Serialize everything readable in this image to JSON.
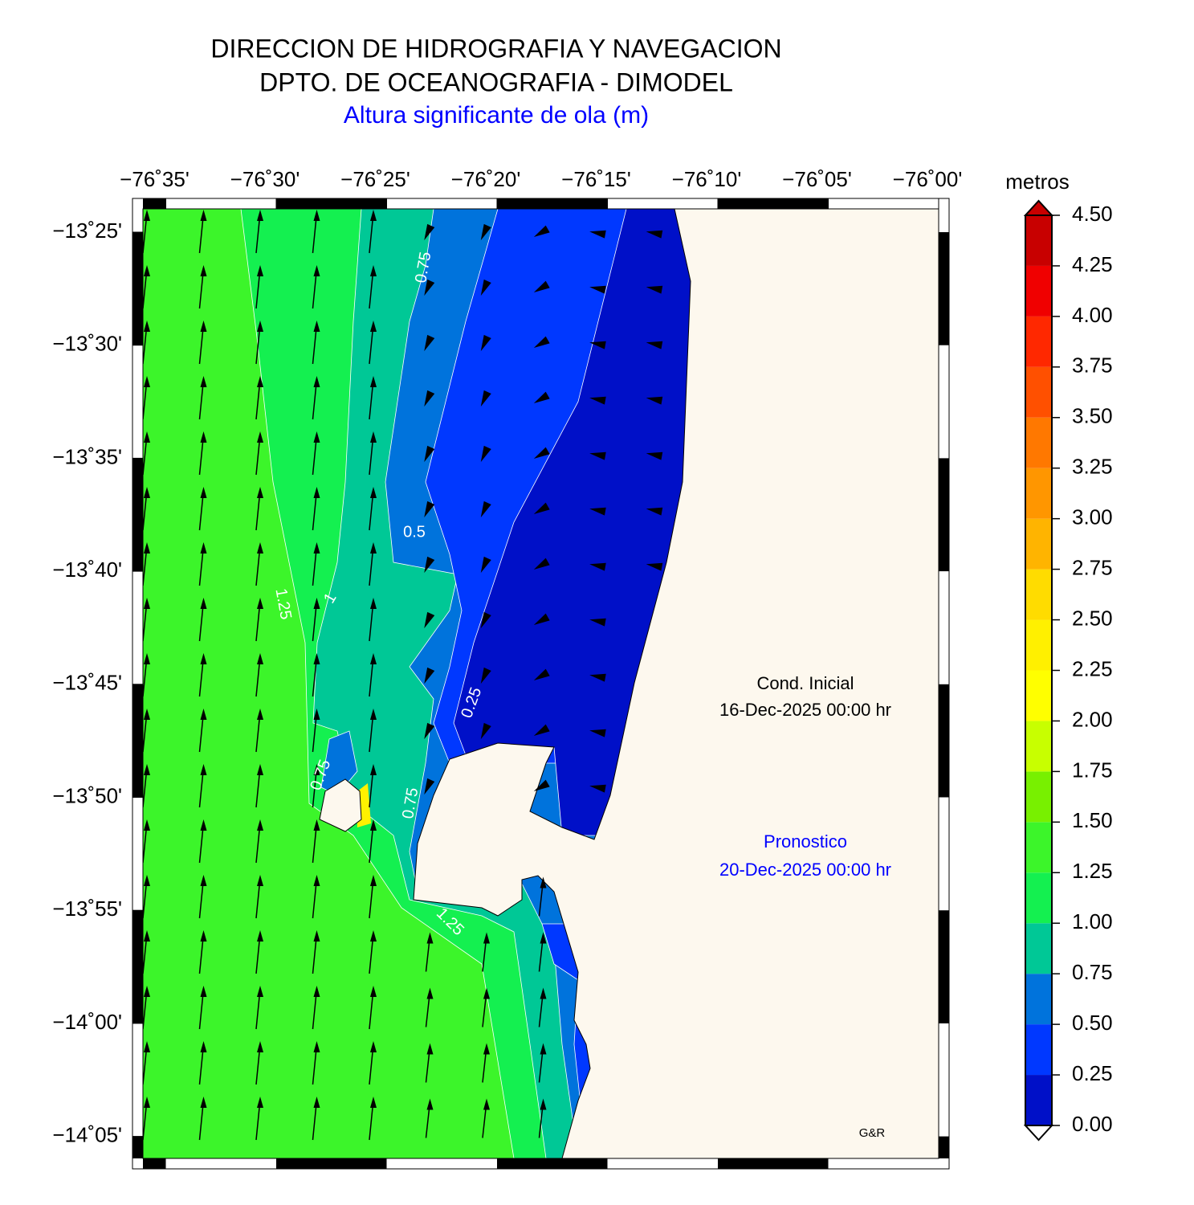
{
  "header": {
    "title": "DIRECCION DE HIDROGRAFIA Y NAVEGACION",
    "subtitle": "DPTO. DE OCEANOGRAFIA - DIMODEL",
    "variable": "Altura significante de ola (m)"
  },
  "map": {
    "lon_ticks": [
      {
        "value": -76.583333,
        "label": "−76˚35'"
      },
      {
        "value": -76.5,
        "label": "−76˚30'"
      },
      {
        "value": -76.416667,
        "label": "−76˚25'"
      },
      {
        "value": -76.333333,
        "label": "−76˚20'"
      },
      {
        "value": -76.25,
        "label": "−76˚15'"
      },
      {
        "value": -76.166667,
        "label": "−76˚10'"
      },
      {
        "value": -76.083333,
        "label": "−76˚05'"
      },
      {
        "value": -76,
        "label": "−76˚00'"
      }
    ],
    "lat_ticks": [
      {
        "value": -13.416667,
        "label": "−13˚25'"
      },
      {
        "value": -13.5,
        "label": "−13˚30'"
      },
      {
        "value": -13.583333,
        "label": "−13˚35'"
      },
      {
        "value": -13.666667,
        "label": "−13˚40'"
      },
      {
        "value": -13.75,
        "label": "−13˚45'"
      },
      {
        "value": -13.833333,
        "label": "−13˚50'"
      },
      {
        "value": -13.916667,
        "label": "−13˚55'"
      },
      {
        "value": -14,
        "label": "−14˚00'"
      },
      {
        "value": -14.083333,
        "label": "−14˚05'"
      }
    ],
    "contour_labels": [
      "0.75",
      "0.5",
      "1.25",
      "1",
      "0.25",
      "0.75",
      "0.75",
      "1.25"
    ],
    "initial_label": "Cond. Inicial",
    "initial_date": "16-Dec-2025 00:00 hr",
    "forecast_label": "Pronostico",
    "forecast_date": "20-Dec-2025 00:00 hr",
    "credit": "G&R"
  },
  "colorbar": {
    "title": "metros",
    "ticks": [
      {
        "value": 0,
        "label": "0.00"
      },
      {
        "value": 0.25,
        "label": "0.25"
      },
      {
        "value": 0.5,
        "label": "0.50"
      },
      {
        "value": 0.75,
        "label": "0.75"
      },
      {
        "value": 1,
        "label": "1.00"
      },
      {
        "value": 1.25,
        "label": "1.25"
      },
      {
        "value": 1.5,
        "label": "1.50"
      },
      {
        "value": 1.75,
        "label": "1.75"
      },
      {
        "value": 2,
        "label": "2.00"
      },
      {
        "value": 2.25,
        "label": "2.25"
      },
      {
        "value": 2.5,
        "label": "2.50"
      },
      {
        "value": 2.75,
        "label": "2.75"
      },
      {
        "value": 3,
        "label": "3.00"
      },
      {
        "value": 3.25,
        "label": "3.25"
      },
      {
        "value": 3.5,
        "label": "3.50"
      },
      {
        "value": 3.75,
        "label": "3.75"
      },
      {
        "value": 4,
        "label": "4.00"
      },
      {
        "value": 4.25,
        "label": "4.25"
      },
      {
        "value": 4.5,
        "label": "4.50"
      }
    ],
    "colors": [
      "#0010c8",
      "#0038ff",
      "#0073dc",
      "#00c896",
      "#14f050",
      "#3cf52a",
      "#78f000",
      "#c8ff00",
      "#ffff00",
      "#fff000",
      "#ffdc00",
      "#ffb400",
      "#ff9600",
      "#ff7800",
      "#ff5000",
      "#ff2800",
      "#f00000",
      "#c80000"
    ]
  }
}
